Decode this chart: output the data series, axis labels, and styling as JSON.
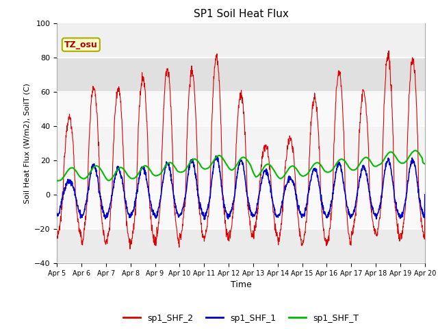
{
  "title": "SP1 Soil Heat Flux",
  "xlabel": "Time",
  "ylabel": "Soil Heat Flux (W/m2), SoilT (C)",
  "xlim_start": 0,
  "xlim_end": 15,
  "ylim": [
    -40,
    100
  ],
  "yticks": [
    -40,
    -20,
    0,
    20,
    40,
    60,
    80,
    100
  ],
  "xtick_labels": [
    "Apr 5",
    "Apr 6",
    "Apr 7",
    "Apr 8",
    "Apr 9",
    "Apr 10",
    "Apr 11",
    "Apr 12",
    "Apr 13",
    "Apr 14",
    "Apr 15",
    "Apr 16",
    "Apr 17",
    "Apr 18",
    "Apr 19",
    "Apr 20"
  ],
  "color_shf2": "#dd0000",
  "color_shf1": "#0000cc",
  "color_shft": "#00bb00",
  "legend_labels": [
    "sp1_SHF_2",
    "sp1_SHF_1",
    "sp1_SHF_T"
  ],
  "annotation_text": "TZ_osu",
  "annotation_color": "#aa0000",
  "annotation_bg": "#ffffcc",
  "annotation_border": "#aaaa00",
  "grid_color": "#ffffff",
  "plot_bg": "#ffffff",
  "fig_bg": "#ffffff",
  "band_color": "#e0e0e0"
}
